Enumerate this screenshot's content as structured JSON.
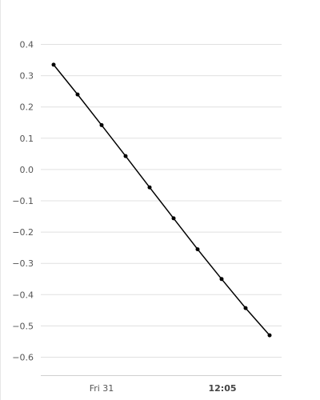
{
  "chart_data": {
    "type": "line",
    "title": "",
    "xlabel": "",
    "ylabel": "",
    "grid": true,
    "ylim": [
      -0.68,
      0.44
    ],
    "y_ticks": [
      0.4,
      0.3,
      0.2,
      0.1,
      0.0,
      -0.1,
      -0.2,
      -0.3,
      -0.4,
      -0.5,
      -0.6
    ],
    "y_tick_labels": [
      "0.4",
      "0.3",
      "0.2",
      "0.1",
      "0.0",
      "−0.1",
      "−0.2",
      "−0.3",
      "−0.4",
      "−0.5",
      "−0.6"
    ],
    "x_tick_labels": [
      {
        "label": "Fri 31",
        "bold": false
      },
      {
        "label": "12:05",
        "bold": true
      }
    ],
    "series": [
      {
        "color": "#000000",
        "values": [
          0.335,
          0.24,
          0.142,
          0.043,
          -0.057,
          -0.156,
          -0.255,
          -0.35,
          -0.443,
          -0.53
        ]
      }
    ]
  }
}
